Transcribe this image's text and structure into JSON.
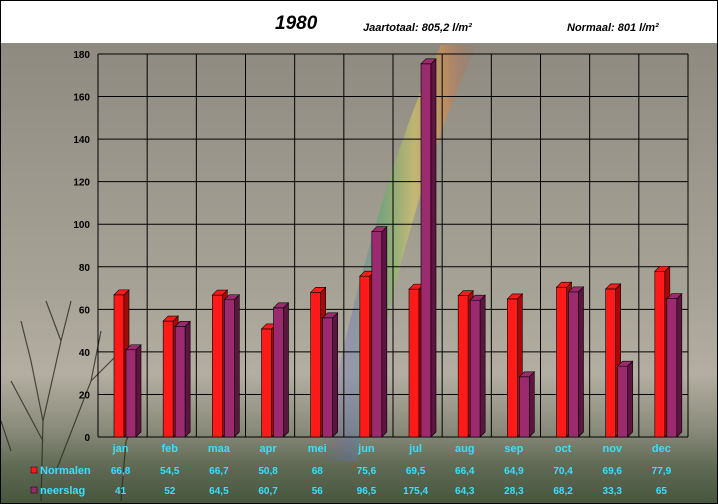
{
  "header": {
    "year": "1980",
    "total": "Jaartotaal: 805,2 l/m²",
    "normal": "Normaal: 801 l/m²"
  },
  "colors": {
    "normalen": "#ff1a1a",
    "neerslag": "#9b2b6e",
    "labels": "#38e0ff"
  },
  "chart_data": {
    "type": "bar",
    "title": "1980",
    "categories": [
      "jan",
      "feb",
      "maa",
      "apr",
      "mei",
      "jun",
      "jul",
      "aug",
      "sep",
      "oct",
      "nov",
      "dec"
    ],
    "series": [
      {
        "name": "Normalen",
        "values": [
          66.8,
          54.5,
          66.7,
          50.8,
          68,
          75.6,
          69.5,
          66.4,
          64.9,
          70.4,
          69.6,
          77.9
        ],
        "labels": [
          "66,8",
          "54,5",
          "66,7",
          "50,8",
          "68",
          "75,6",
          "69,5",
          "66,4",
          "64,9",
          "70,4",
          "69,6",
          "77,9"
        ]
      },
      {
        "name": "neerslag",
        "values": [
          41,
          52,
          64.5,
          60.7,
          56,
          96.5,
          175.4,
          64.3,
          28.3,
          68.2,
          33.3,
          65
        ],
        "labels": [
          "41",
          "52",
          "64,5",
          "60,7",
          "56",
          "96,5",
          "175,4",
          "64,3",
          "28,3",
          "68,2",
          "33,3",
          "65"
        ]
      }
    ],
    "ylim": [
      0,
      180
    ],
    "yticks": [
      0,
      20,
      40,
      60,
      80,
      100,
      120,
      140,
      160,
      180
    ],
    "grid": true,
    "legend": "bottom-left table"
  }
}
